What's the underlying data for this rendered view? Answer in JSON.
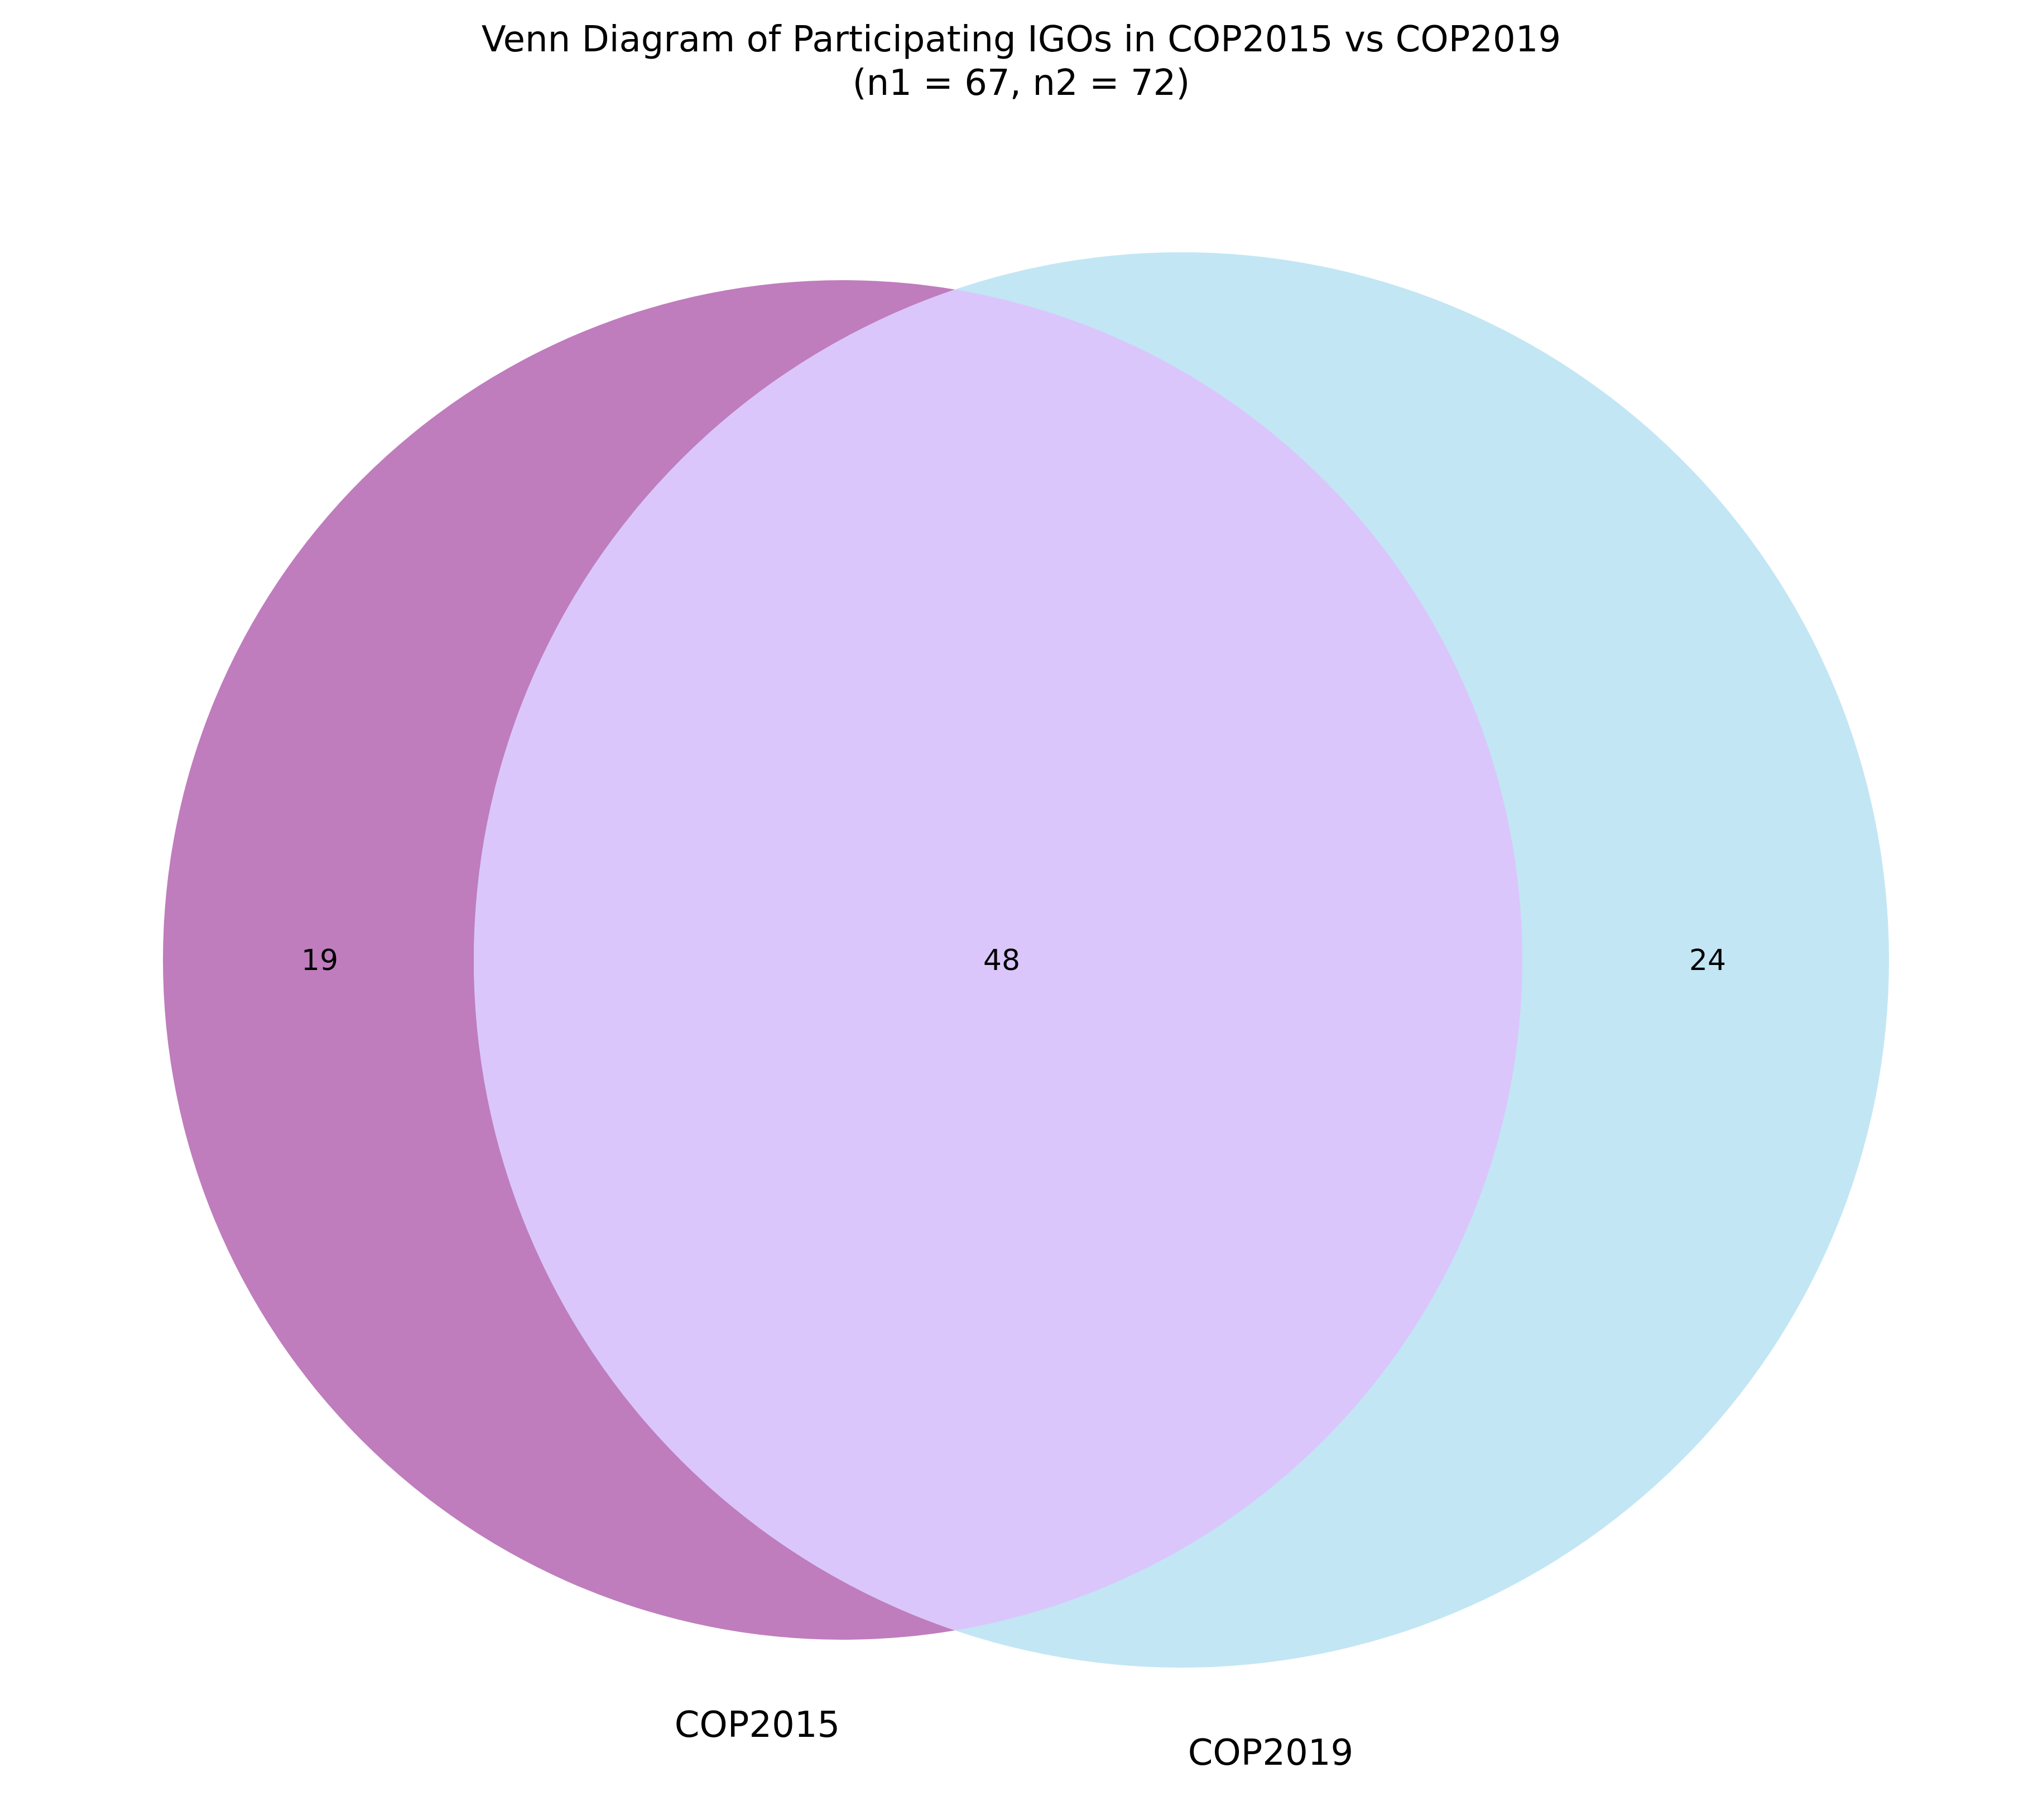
{
  "chart_data": {
    "type": "venn",
    "title": "Venn Diagram of Participating IGOs in COP2015 vs COP2019",
    "subtitle": "(n1 = 67, n2 = 72)",
    "sets": [
      {
        "name": "COP2015",
        "size": 67,
        "only": 19,
        "color": "#bf7dbd"
      },
      {
        "name": "COP2019",
        "size": 72,
        "only": 24,
        "color": "#c2e6f4"
      }
    ],
    "intersection": {
      "value": 48,
      "color": "#dbc6fc"
    }
  }
}
